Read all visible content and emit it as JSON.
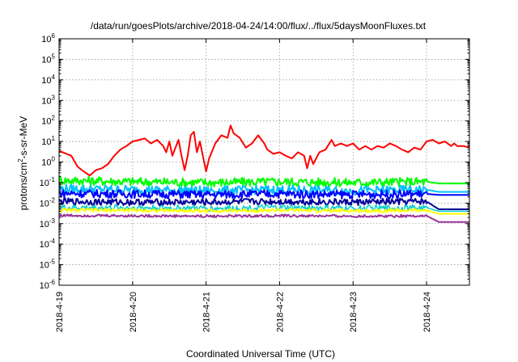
{
  "chart_data": {
    "type": "line",
    "title": "/data/run/goesPlots/archive/2018-04-24/14:00/flux/../flux/5daysMoonFluxes.txt",
    "xlabel": "Coordinated Universal Time (UTC)",
    "ylabel": {
      "base": "protons/cm",
      "sup": "2",
      "rest": "-s-sr-MeV"
    },
    "y_scale": "log",
    "ylim": [
      1e-06,
      1000000.0
    ],
    "xlim": [
      "2018-04-19T00:00",
      "2018-04-24T14:00"
    ],
    "x_ticks": [
      "2018-4-19",
      "2018-4-20",
      "2018-4-21",
      "2018-4-22",
      "2018-4-23",
      "2018-4-24"
    ],
    "y_ticks": [
      {
        "base": "10",
        "exp": "-6"
      },
      {
        "base": "10",
        "exp": "-5"
      },
      {
        "base": "10",
        "exp": "-4"
      },
      {
        "base": "10",
        "exp": "-3"
      },
      {
        "base": "10",
        "exp": "-2"
      },
      {
        "base": "10",
        "exp": "-1"
      },
      {
        "base": "10",
        "exp": "0"
      },
      {
        "base": "10",
        "exp": "1"
      },
      {
        "base": "10",
        "exp": "2"
      },
      {
        "base": "10",
        "exp": "3"
      },
      {
        "base": "10",
        "exp": "4"
      },
      {
        "base": "10",
        "exp": "5"
      },
      {
        "base": "10",
        "exp": "6"
      }
    ],
    "grid": true,
    "legend": "none",
    "series": [
      {
        "color": "#ff0000",
        "width": 2,
        "points": [
          [
            "2018-04-19T00:00",
            3.5
          ],
          [
            "2018-04-19T04:00",
            2.0
          ],
          [
            "2018-04-19T06:00",
            0.6
          ],
          [
            "2018-04-19T08:00",
            0.35
          ],
          [
            "2018-04-19T10:00",
            0.22
          ],
          [
            "2018-04-19T12:00",
            0.4
          ],
          [
            "2018-04-19T14:00",
            0.5
          ],
          [
            "2018-04-19T16:00",
            0.8
          ],
          [
            "2018-04-19T18:00",
            2.0
          ],
          [
            "2018-04-19T20:00",
            4.0
          ],
          [
            "2018-04-19T22:00",
            6.0
          ],
          [
            "2018-04-20T00:00",
            10
          ],
          [
            "2018-04-20T04:00",
            14
          ],
          [
            "2018-04-20T06:00",
            8
          ],
          [
            "2018-04-20T08:00",
            12
          ],
          [
            "2018-04-20T10:00",
            6
          ],
          [
            "2018-04-20T11:00",
            3
          ],
          [
            "2018-04-20T12:00",
            10
          ],
          [
            "2018-04-20T13:00",
            2
          ],
          [
            "2018-04-20T14:00",
            5
          ],
          [
            "2018-04-20T15:00",
            12
          ],
          [
            "2018-04-20T16:00",
            2
          ],
          [
            "2018-04-20T17:00",
            0.4
          ],
          [
            "2018-04-20T18:00",
            2
          ],
          [
            "2018-04-20T19:00",
            20
          ],
          [
            "2018-04-20T20:00",
            30
          ],
          [
            "2018-04-20T21:00",
            3
          ],
          [
            "2018-04-20T22:00",
            10
          ],
          [
            "2018-04-21T00:00",
            0.35
          ],
          [
            "2018-04-21T01:00",
            1.5
          ],
          [
            "2018-04-21T03:00",
            8
          ],
          [
            "2018-04-21T05:00",
            20
          ],
          [
            "2018-04-21T07:00",
            15
          ],
          [
            "2018-04-21T08:00",
            60
          ],
          [
            "2018-04-21T09:00",
            25
          ],
          [
            "2018-04-21T11:00",
            15
          ],
          [
            "2018-04-21T13:00",
            5
          ],
          [
            "2018-04-21T15:00",
            8
          ],
          [
            "2018-04-21T17:00",
            20
          ],
          [
            "2018-04-21T19:00",
            8
          ],
          [
            "2018-04-21T20:00",
            4
          ],
          [
            "2018-04-21T22:00",
            2.5
          ],
          [
            "2018-04-22T00:00",
            3
          ],
          [
            "2018-04-22T02:00",
            2
          ],
          [
            "2018-04-22T04:00",
            1.5
          ],
          [
            "2018-04-22T06:00",
            3
          ],
          [
            "2018-04-22T08:00",
            2
          ],
          [
            "2018-04-22T09:00",
            0.5
          ],
          [
            "2018-04-22T10:00",
            2
          ],
          [
            "2018-04-22T11:00",
            0.8
          ],
          [
            "2018-04-22T13:00",
            3
          ],
          [
            "2018-04-22T15:00",
            4
          ],
          [
            "2018-04-22T17:00",
            12
          ],
          [
            "2018-04-22T18:00",
            6
          ],
          [
            "2018-04-22T20:00",
            8
          ],
          [
            "2018-04-22T22:00",
            6
          ],
          [
            "2018-04-23T00:00",
            8
          ],
          [
            "2018-04-23T02:00",
            4
          ],
          [
            "2018-04-23T04:00",
            6
          ],
          [
            "2018-04-23T06:00",
            4
          ],
          [
            "2018-04-23T08:00",
            6
          ],
          [
            "2018-04-23T10:00",
            5
          ],
          [
            "2018-04-23T12:00",
            8
          ],
          [
            "2018-04-23T14:00",
            6
          ],
          [
            "2018-04-23T16:00",
            4
          ],
          [
            "2018-04-23T18:00",
            3
          ],
          [
            "2018-04-23T20:00",
            5
          ],
          [
            "2018-04-23T22:00",
            4
          ],
          [
            "2018-04-24T00:00",
            10
          ],
          [
            "2018-04-24T02:00",
            12
          ],
          [
            "2018-04-24T04:00",
            8
          ],
          [
            "2018-04-24T06:00",
            10
          ],
          [
            "2018-04-24T08:00",
            6
          ],
          [
            "2018-04-24T09:00",
            8
          ],
          [
            "2018-04-24T10:00",
            6
          ],
          [
            "2018-04-24T12:00",
            6
          ],
          [
            "2018-04-24T14:00",
            5
          ]
        ]
      },
      {
        "color": "#00ff00",
        "width": 2,
        "noise": 0.22,
        "points": [
          [
            "2018-04-19T00:00",
            0.13
          ],
          [
            "2018-04-20T00:00",
            0.11
          ],
          [
            "2018-04-21T00:00",
            0.1
          ],
          [
            "2018-04-22T00:00",
            0.11
          ],
          [
            "2018-04-23T00:00",
            0.1
          ],
          [
            "2018-04-24T00:00",
            0.11
          ],
          [
            "2018-04-24T04:00",
            0.09
          ],
          [
            "2018-04-24T14:00",
            0.09
          ]
        ]
      },
      {
        "color": "#00bfff",
        "width": 2,
        "noise": 0.22,
        "points": [
          [
            "2018-04-19T00:00",
            0.05
          ],
          [
            "2018-04-20T00:00",
            0.045
          ],
          [
            "2018-04-21T00:00",
            0.04
          ],
          [
            "2018-04-22T00:00",
            0.045
          ],
          [
            "2018-04-23T00:00",
            0.04
          ],
          [
            "2018-04-24T00:00",
            0.045
          ],
          [
            "2018-04-24T04:00",
            0.035
          ],
          [
            "2018-04-24T14:00",
            0.035
          ]
        ]
      },
      {
        "color": "#0000ff",
        "width": 2,
        "noise": 0.2,
        "points": [
          [
            "2018-04-19T00:00",
            0.03
          ],
          [
            "2018-04-20T00:00",
            0.028
          ],
          [
            "2018-04-21T00:00",
            0.026
          ],
          [
            "2018-04-22T00:00",
            0.028
          ],
          [
            "2018-04-23T00:00",
            0.026
          ],
          [
            "2018-04-24T00:00",
            0.028
          ],
          [
            "2018-04-24T04:00",
            0.025
          ],
          [
            "2018-04-24T14:00",
            0.025
          ]
        ]
      },
      {
        "color": "#00009a",
        "width": 2,
        "noise": 0.16,
        "points": [
          [
            "2018-04-19T00:00",
            0.012
          ],
          [
            "2018-04-20T00:00",
            0.011
          ],
          [
            "2018-04-21T00:00",
            0.011
          ],
          [
            "2018-04-22T00:00",
            0.012
          ],
          [
            "2018-04-23T00:00",
            0.011
          ],
          [
            "2018-04-24T00:00",
            0.012
          ],
          [
            "2018-04-24T04:00",
            0.005
          ],
          [
            "2018-04-24T14:00",
            0.005
          ]
        ]
      },
      {
        "color": "#00cccc",
        "width": 1.5,
        "noise": 0.15,
        "points": [
          [
            "2018-04-19T00:00",
            0.006
          ],
          [
            "2018-04-20T00:00",
            0.006
          ],
          [
            "2018-04-21T00:00",
            0.0055
          ],
          [
            "2018-04-22T00:00",
            0.006
          ],
          [
            "2018-04-23T00:00",
            0.0055
          ],
          [
            "2018-04-24T00:00",
            0.006
          ],
          [
            "2018-04-24T04:00",
            0.004
          ],
          [
            "2018-04-24T14:00",
            0.004
          ]
        ]
      },
      {
        "color": "#ffff00",
        "width": 2,
        "noise": 0.08,
        "points": [
          [
            "2018-04-19T00:00",
            0.0045
          ],
          [
            "2018-04-20T00:00",
            0.0045
          ],
          [
            "2018-04-21T00:00",
            0.0042
          ],
          [
            "2018-04-22T00:00",
            0.0045
          ],
          [
            "2018-04-23T00:00",
            0.0042
          ],
          [
            "2018-04-24T00:00",
            0.0045
          ],
          [
            "2018-04-24T04:00",
            0.003
          ],
          [
            "2018-04-24T14:00",
            0.003
          ]
        ]
      },
      {
        "color": "#993399",
        "width": 2,
        "noise": 0.06,
        "points": [
          [
            "2018-04-19T00:00",
            0.0025
          ],
          [
            "2018-04-20T00:00",
            0.0024
          ],
          [
            "2018-04-21T00:00",
            0.0023
          ],
          [
            "2018-04-22T00:00",
            0.0024
          ],
          [
            "2018-04-23T00:00",
            0.0023
          ],
          [
            "2018-04-24T00:00",
            0.0024
          ],
          [
            "2018-04-24T04:00",
            0.0012
          ],
          [
            "2018-04-24T14:00",
            0.0012
          ]
        ]
      }
    ]
  }
}
